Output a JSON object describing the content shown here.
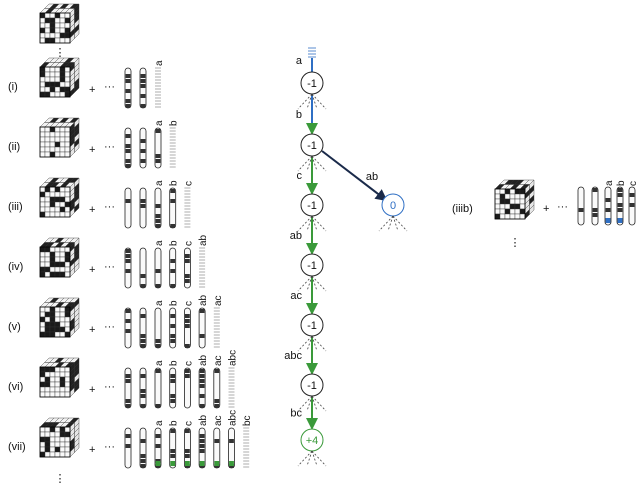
{
  "rows": [
    {
      "label": "(i)",
      "strands": [
        "a"
      ]
    },
    {
      "label": "(ii)",
      "strands": [
        "a",
        "b"
      ]
    },
    {
      "label": "(iii)",
      "strands": [
        "a",
        "b",
        "c"
      ]
    },
    {
      "label": "(iv)",
      "strands": [
        "a",
        "b",
        "c",
        "ab"
      ]
    },
    {
      "label": "(v)",
      "strands": [
        "a",
        "b",
        "c",
        "ab",
        "ac"
      ]
    },
    {
      "label": "(vi)",
      "strands": [
        "a",
        "b",
        "c",
        "ab",
        "ac",
        "abc"
      ]
    },
    {
      "label": "(vii)",
      "strands": [
        "a",
        "b",
        "c",
        "ab",
        "ac",
        "abc",
        "bc"
      ]
    }
  ],
  "side_panel": {
    "label": "(iiib)",
    "strands": [
      "a",
      "b",
      "c"
    ]
  },
  "tree": {
    "edges": [
      "a",
      "b",
      "c",
      "ab",
      "ac",
      "abc",
      "bc"
    ],
    "branch_edge": "ab",
    "nodes": [
      "-1",
      "-1",
      "-1",
      "-1",
      "-1",
      "-1",
      "+4"
    ],
    "branch_node": "0"
  },
  "symbols": {
    "plus": "+",
    "ellipsis": "···",
    "vdots": "⋮"
  },
  "colors": {
    "green": "#3a9a3a",
    "blue": "#2f6fc4",
    "dark": "#1a2a4a"
  }
}
